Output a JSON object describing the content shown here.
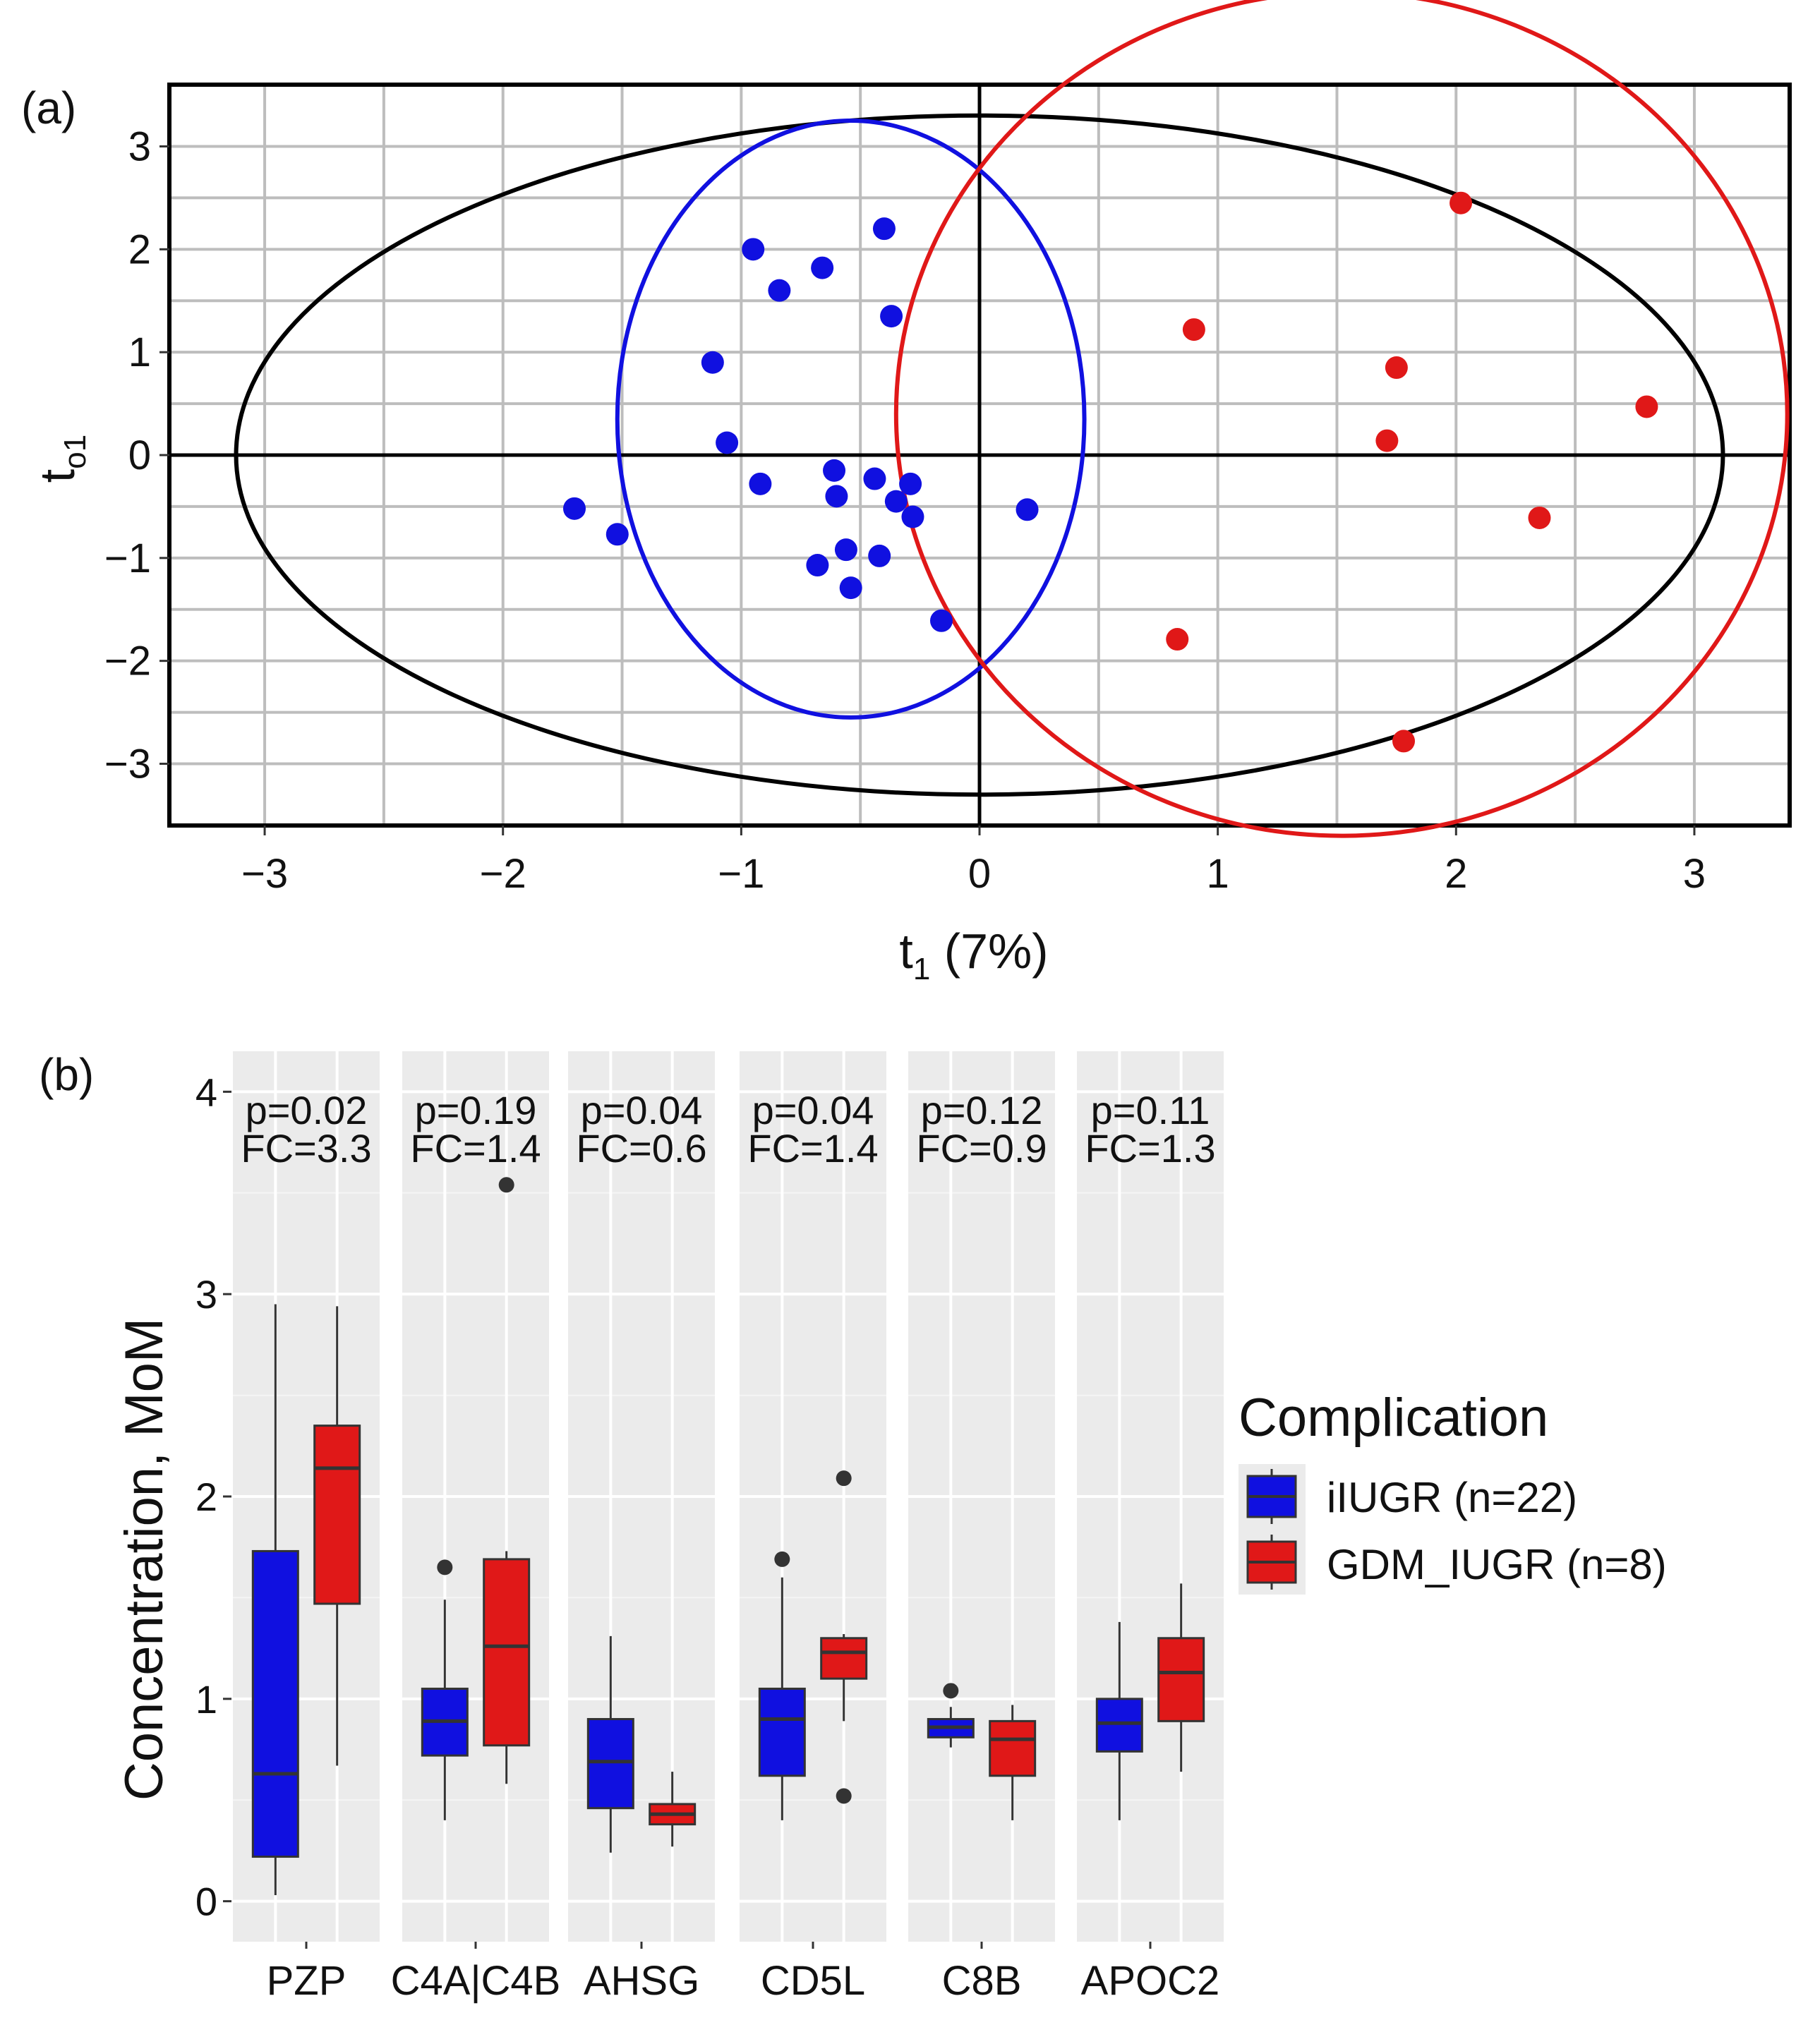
{
  "panel_a": {
    "label": "(a)",
    "xlabel_main": "t",
    "xlabel_sub": "1",
    "xlabel_rest": " (7%)",
    "ylabel_main": "t",
    "ylabel_sub": "o1",
    "chart_data": {
      "type": "scatter",
      "xlim": [
        -3.4,
        3.4
      ],
      "ylim": [
        -3.6,
        3.6
      ],
      "x_ticks": [
        -3,
        -2,
        -1,
        0,
        1,
        2,
        3
      ],
      "y_ticks": [
        -3,
        -2,
        -1,
        0,
        1,
        2,
        3
      ],
      "x_tick_labels": [
        "−3",
        "−2",
        "−1",
        "0",
        "1",
        "2",
        "3"
      ],
      "y_tick_labels": [
        "−3",
        "−2",
        "−1",
        "0",
        "1",
        "2",
        "3"
      ],
      "grid": true,
      "colors": {
        "iIUGR": "#1010e0",
        "GDM_IUGR": "#e01818",
        "hotelling": "#000000"
      },
      "hotelling_ellipse": {
        "cx": 0,
        "cy": 0,
        "rx": 3.12,
        "ry": 3.3
      },
      "group_ellipses": [
        {
          "group": "iIUGR",
          "cx": -0.54,
          "cy": 0.35,
          "rx": 0.98,
          "ry": 2.9
        },
        {
          "group": "GDM_IUGR",
          "cx": 1.52,
          "cy": 0.4,
          "rx": 1.87,
          "ry": 4.1
        }
      ],
      "series": [
        {
          "group": "iIUGR",
          "x": [
            -0.95,
            -0.84,
            -0.66,
            -0.4,
            -0.37,
            -1.12,
            -1.06,
            -0.92,
            -0.61,
            -0.6,
            -0.44,
            -0.35,
            -0.29,
            -0.28,
            -1.7,
            -1.52,
            -0.68,
            -0.56,
            -0.42,
            -0.54,
            -0.16,
            0.2
          ],
          "y": [
            2.0,
            1.6,
            1.82,
            2.2,
            1.35,
            0.9,
            0.12,
            -0.28,
            -0.15,
            -0.4,
            -0.23,
            -0.45,
            -0.28,
            -0.6,
            -0.52,
            -0.77,
            -1.07,
            -0.92,
            -0.98,
            -1.29,
            -1.61,
            -0.53
          ]
        },
        {
          "group": "GDM_IUGR",
          "x": [
            2.02,
            0.9,
            1.75,
            2.8,
            1.71,
            2.35,
            0.83,
            1.78
          ],
          "y": [
            2.45,
            1.22,
            0.85,
            0.47,
            0.14,
            -0.61,
            -1.79,
            -2.78
          ]
        }
      ]
    }
  },
  "panel_b": {
    "label": "(b)",
    "ylabel": "Concentration, MoM",
    "legend": {
      "title": "Complication",
      "items": [
        {
          "label": "iIUGR (n=22)",
          "color": "#1010e0"
        },
        {
          "label": "GDM_IUGR (n=8)",
          "color": "#e01818"
        }
      ]
    },
    "chart_data": {
      "type": "box",
      "ylim": [
        -0.2,
        4.2
      ],
      "y_ticks": [
        0,
        1,
        2,
        3,
        4
      ],
      "y_tick_labels": [
        "0",
        "1",
        "2",
        "3",
        "4"
      ],
      "grid": true,
      "facets": [
        {
          "name": "PZP",
          "p_label": "p=0.02",
          "fc_label": "FC=3.3",
          "groups": [
            {
              "group": "iIUGR",
              "min": 0.03,
              "q1": 0.22,
              "median": 0.63,
              "q3": 1.73,
              "max": 2.95,
              "outliers": []
            },
            {
              "group": "GDM_IUGR",
              "min": 0.67,
              "q1": 1.47,
              "median": 2.14,
              "q3": 2.35,
              "max": 2.94,
              "outliers": []
            }
          ]
        },
        {
          "name": "C4A|C4B",
          "p_label": "p=0.19",
          "fc_label": "FC=1.4",
          "groups": [
            {
              "group": "iIUGR",
              "min": 0.4,
              "q1": 0.72,
              "median": 0.89,
              "q3": 1.05,
              "max": 1.49,
              "outliers": [
                1.65
              ]
            },
            {
              "group": "GDM_IUGR",
              "min": 0.58,
              "q1": 0.77,
              "median": 1.26,
              "q3": 1.69,
              "max": 1.73,
              "outliers": [
                3.54
              ]
            }
          ]
        },
        {
          "name": "AHSG",
          "p_label": "p=0.04",
          "fc_label": "FC=0.6",
          "groups": [
            {
              "group": "iIUGR",
              "min": 0.24,
              "q1": 0.46,
              "median": 0.69,
              "q3": 0.9,
              "max": 1.31,
              "outliers": []
            },
            {
              "group": "GDM_IUGR",
              "min": 0.27,
              "q1": 0.38,
              "median": 0.43,
              "q3": 0.48,
              "max": 0.64,
              "outliers": []
            }
          ]
        },
        {
          "name": "CD5L",
          "p_label": "p=0.04",
          "fc_label": "FC=1.4",
          "groups": [
            {
              "group": "iIUGR",
              "min": 0.4,
              "q1": 0.62,
              "median": 0.9,
              "q3": 1.05,
              "max": 1.6,
              "outliers": [
                1.69
              ]
            },
            {
              "group": "GDM_IUGR",
              "min": 0.89,
              "q1": 1.1,
              "median": 1.23,
              "q3": 1.3,
              "max": 1.32,
              "outliers": [
                2.09,
                0.52
              ]
            }
          ]
        },
        {
          "name": "C8B",
          "p_label": "p=0.12",
          "fc_label": "FC=0.9",
          "groups": [
            {
              "group": "iIUGR",
              "min": 0.76,
              "q1": 0.81,
              "median": 0.86,
              "q3": 0.9,
              "max": 0.96,
              "outliers": [
                1.04
              ]
            },
            {
              "group": "GDM_IUGR",
              "min": 0.4,
              "q1": 0.62,
              "median": 0.8,
              "q3": 0.89,
              "max": 0.97,
              "outliers": []
            }
          ]
        },
        {
          "name": "APOC2",
          "p_label": "p=0.11",
          "fc_label": "FC=1.3",
          "groups": [
            {
              "group": "iIUGR",
              "min": 0.4,
              "q1": 0.74,
              "median": 0.88,
              "q3": 1.0,
              "max": 1.38,
              "outliers": []
            },
            {
              "group": "GDM_IUGR",
              "min": 0.64,
              "q1": 0.89,
              "median": 1.13,
              "q3": 1.3,
              "max": 1.57,
              "outliers": []
            }
          ]
        }
      ]
    }
  }
}
